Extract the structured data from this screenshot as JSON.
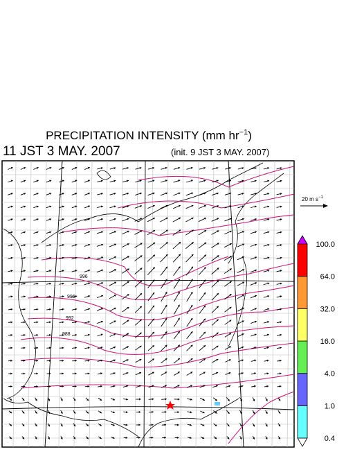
{
  "title": {
    "main": "PRECIPITATION INTENSITY (mm hr",
    "exponent": "−1",
    "end": ")"
  },
  "valid_time": "11 JST 3 MAY. 2007",
  "init_time": "(init. 9 JST 3 MAY. 2007)",
  "wind_scale": {
    "main": "20 m s",
    "exponent": "−1"
  },
  "isobar_labels": [
    "996",
    "996",
    "992",
    "988"
  ],
  "colorbar": {
    "levels": [
      "0.4",
      "1.0",
      "4.0",
      "16.0",
      "32.0",
      "64.0",
      "100.0"
    ],
    "colors": [
      "#ffffff",
      "#66ffff",
      "#6666ff",
      "#66ee55",
      "#ffff66",
      "#ff9933",
      "#ff0000",
      "#cc00ff"
    ]
  }
}
